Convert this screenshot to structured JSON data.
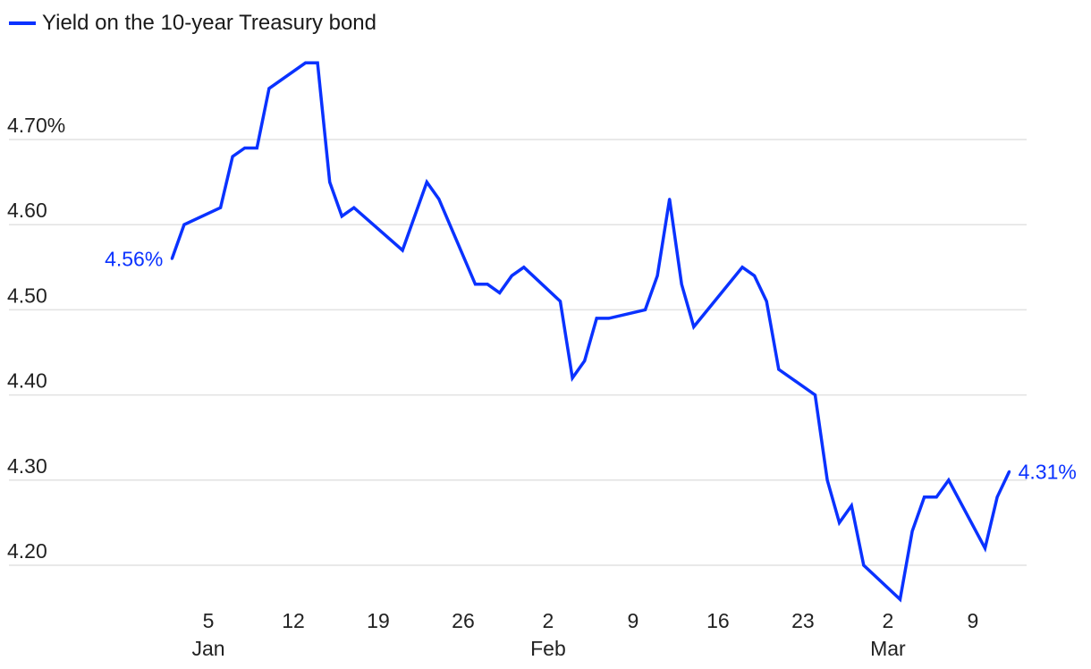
{
  "legend": {
    "label": "Yield on the 10-year Treasury bond"
  },
  "colors": {
    "line": "#0a32ff",
    "grid": "#e2e2e2",
    "text": "#222222"
  },
  "chart_data": {
    "type": "line",
    "title": "",
    "xlabel": "",
    "ylabel": "",
    "ylim": [
      4.15,
      4.8
    ],
    "y_ticks": [
      {
        "value": 4.7,
        "label": "4.70%"
      },
      {
        "value": 4.6,
        "label": "4.60"
      },
      {
        "value": 4.5,
        "label": "4.50"
      },
      {
        "value": 4.4,
        "label": "4.40"
      },
      {
        "value": 4.3,
        "label": "4.30"
      },
      {
        "value": 4.2,
        "label": "4.20"
      }
    ],
    "x_ticks": [
      {
        "date": "2025-01-05",
        "label": "5",
        "sublabel": "Jan"
      },
      {
        "date": "2025-01-12",
        "label": "12",
        "sublabel": ""
      },
      {
        "date": "2025-01-19",
        "label": "19",
        "sublabel": ""
      },
      {
        "date": "2025-01-26",
        "label": "26",
        "sublabel": ""
      },
      {
        "date": "2025-02-02",
        "label": "2",
        "sublabel": "Feb"
      },
      {
        "date": "2025-02-09",
        "label": "9",
        "sublabel": ""
      },
      {
        "date": "2025-02-16",
        "label": "16",
        "sublabel": ""
      },
      {
        "date": "2025-02-23",
        "label": "23",
        "sublabel": ""
      },
      {
        "date": "2025-03-02",
        "label": "2",
        "sublabel": "Mar"
      },
      {
        "date": "2025-03-09",
        "label": "9",
        "sublabel": ""
      }
    ],
    "grid": true,
    "legend_position": "top-left",
    "series": [
      {
        "name": "Yield on the 10-year Treasury bond",
        "x": [
          "2025-01-02",
          "2025-01-03",
          "2025-01-06",
          "2025-01-07",
          "2025-01-08",
          "2025-01-09",
          "2025-01-10",
          "2025-01-13",
          "2025-01-14",
          "2025-01-15",
          "2025-01-16",
          "2025-01-17",
          "2025-01-21",
          "2025-01-22",
          "2025-01-23",
          "2025-01-24",
          "2025-01-27",
          "2025-01-28",
          "2025-01-29",
          "2025-01-30",
          "2025-01-31",
          "2025-02-03",
          "2025-02-04",
          "2025-02-05",
          "2025-02-06",
          "2025-02-07",
          "2025-02-10",
          "2025-02-11",
          "2025-02-12",
          "2025-02-13",
          "2025-02-14",
          "2025-02-18",
          "2025-02-19",
          "2025-02-20",
          "2025-02-21",
          "2025-02-24",
          "2025-02-25",
          "2025-02-26",
          "2025-02-27",
          "2025-02-28",
          "2025-03-03",
          "2025-03-04",
          "2025-03-05",
          "2025-03-06",
          "2025-03-07",
          "2025-03-10",
          "2025-03-11",
          "2025-03-12"
        ],
        "values": [
          4.56,
          4.6,
          4.62,
          4.68,
          4.69,
          4.69,
          4.76,
          4.79,
          4.79,
          4.65,
          4.61,
          4.62,
          4.57,
          4.61,
          4.65,
          4.63,
          4.53,
          4.53,
          4.52,
          4.54,
          4.55,
          4.51,
          4.42,
          4.44,
          4.49,
          4.49,
          4.5,
          4.54,
          4.63,
          4.53,
          4.48,
          4.55,
          4.54,
          4.51,
          4.43,
          4.4,
          4.3,
          4.25,
          4.27,
          4.2,
          4.16,
          4.24,
          4.28,
          4.28,
          4.3,
          4.22,
          4.28,
          4.31
        ]
      }
    ],
    "annotations": [
      {
        "point": "first",
        "label": "4.56%"
      },
      {
        "point": "last",
        "label": "4.31%"
      }
    ]
  }
}
